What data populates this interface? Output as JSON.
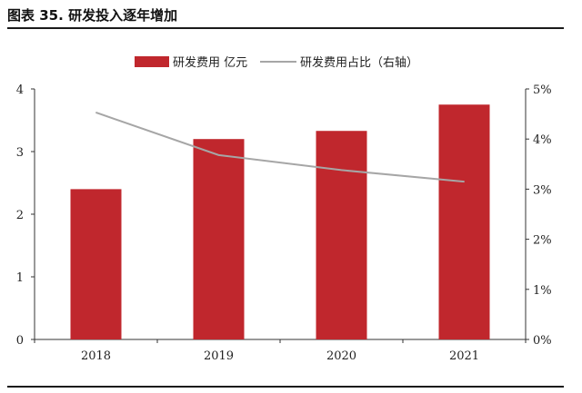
{
  "caption": {
    "label": "图表",
    "number": "35.",
    "title": "研发投入逐年增加"
  },
  "chart_data": {
    "type": "bar",
    "categories": [
      "2018",
      "2019",
      "2020",
      "2021"
    ],
    "series": [
      {
        "name": "研发费用 亿元",
        "kind": "bar",
        "axis": "left",
        "color": "#c0272d",
        "values": [
          2.4,
          3.2,
          3.33,
          3.75
        ]
      },
      {
        "name": "研发费用占比（右轴）",
        "kind": "line",
        "axis": "right",
        "color": "#a6a6a6",
        "values": [
          4.53,
          3.68,
          3.38,
          3.15
        ]
      }
    ],
    "y_left": {
      "ylim": [
        0,
        4
      ],
      "ticks": [
        "0",
        "1",
        "2",
        "3",
        "4"
      ]
    },
    "y_right": {
      "ylim": [
        0,
        5
      ],
      "ticks": [
        "0%",
        "1%",
        "2%",
        "3%",
        "4%",
        "5%"
      ]
    },
    "legend_position": "top-center",
    "grid": false
  }
}
